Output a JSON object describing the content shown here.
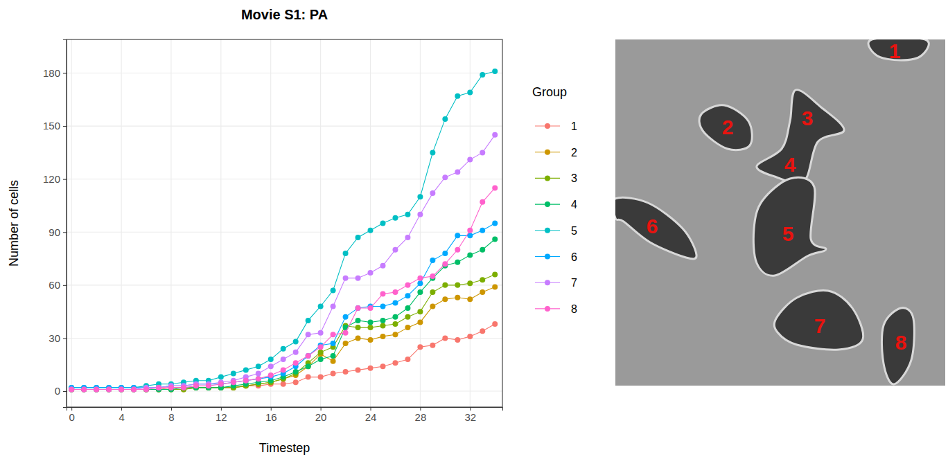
{
  "chart_data": {
    "type": "line",
    "title": "Movie S1: PA",
    "x_label": "Timestep",
    "y_label": "Number of cells",
    "legend_title": "Group",
    "legend": "right",
    "grid": true,
    "marker": "circle",
    "x": [
      0,
      1,
      2,
      3,
      4,
      5,
      6,
      7,
      8,
      9,
      10,
      11,
      12,
      13,
      14,
      15,
      16,
      17,
      18,
      19,
      20,
      21,
      22,
      23,
      24,
      25,
      26,
      27,
      28,
      29,
      30,
      31,
      32,
      33,
      34
    ],
    "xlim": [
      -0.4,
      34.6
    ],
    "xticks": [
      0,
      4,
      8,
      12,
      16,
      20,
      24,
      28,
      32
    ],
    "ylim": [
      -9,
      199
    ],
    "yticks": [
      0,
      30,
      60,
      90,
      120,
      150,
      180
    ],
    "series": [
      {
        "name": "1",
        "color": "#F8766D",
        "values": [
          1,
          1,
          1,
          1,
          1,
          1,
          1,
          1,
          2,
          2,
          2,
          2,
          2,
          2,
          3,
          3,
          4,
          4,
          5,
          8,
          8,
          10,
          11,
          12,
          13,
          14,
          16,
          18,
          25,
          26,
          30,
          29,
          31,
          34,
          38
        ]
      },
      {
        "name": "2",
        "color": "#CD9600",
        "values": [
          1,
          1,
          1,
          1,
          1,
          1,
          1,
          1,
          1,
          1,
          2,
          2,
          2,
          2,
          3,
          4,
          5,
          7,
          9,
          14,
          21,
          17,
          27,
          30,
          29,
          31,
          32,
          36,
          39,
          48,
          52,
          53,
          52,
          56,
          59
        ]
      },
      {
        "name": "3",
        "color": "#7CAE00",
        "values": [
          1,
          1,
          1,
          1,
          1,
          1,
          1,
          1,
          1,
          1,
          2,
          2,
          2,
          2,
          3,
          4,
          5,
          7,
          10,
          16,
          22,
          25,
          37,
          36,
          36,
          37,
          38,
          42,
          45,
          56,
          60,
          60,
          61,
          63,
          66
        ]
      },
      {
        "name": "4",
        "color": "#00BE67",
        "values": [
          1,
          1,
          1,
          1,
          1,
          1,
          1,
          1,
          1,
          2,
          2,
          2,
          2,
          3,
          4,
          5,
          6,
          8,
          11,
          14,
          18,
          20,
          36,
          40,
          39,
          40,
          42,
          47,
          56,
          64,
          71,
          73,
          77,
          80,
          86
        ]
      },
      {
        "name": "5",
        "color": "#00BFC4",
        "values": [
          2,
          2,
          2,
          2,
          2,
          2,
          3,
          4,
          4,
          5,
          6,
          6,
          8,
          10,
          12,
          14,
          18,
          24,
          28,
          40,
          48,
          57,
          78,
          87,
          91,
          95,
          98,
          100,
          110,
          135,
          154,
          167,
          169,
          179,
          181
        ]
      },
      {
        "name": "6",
        "color": "#00A9FF",
        "values": [
          2,
          2,
          2,
          2,
          2,
          2,
          2,
          2,
          3,
          3,
          4,
          4,
          4,
          5,
          6,
          7,
          8,
          10,
          14,
          20,
          26,
          27,
          42,
          47,
          48,
          48,
          50,
          54,
          61,
          74,
          78,
          88,
          88,
          91,
          95
        ]
      },
      {
        "name": "7",
        "color": "#C77CFF",
        "values": [
          1,
          1,
          1,
          1,
          1,
          1,
          2,
          2,
          3,
          3,
          4,
          4,
          5,
          6,
          8,
          10,
          14,
          18,
          22,
          32,
          33,
          48,
          64,
          64,
          67,
          71,
          80,
          87,
          100,
          112,
          121,
          124,
          131,
          135,
          145
        ]
      },
      {
        "name": "8",
        "color": "#FF61CC",
        "values": [
          1,
          1,
          1,
          1,
          1,
          1,
          1,
          2,
          2,
          2,
          3,
          3,
          4,
          5,
          6,
          7,
          9,
          12,
          16,
          20,
          25,
          32,
          33,
          47,
          47,
          55,
          56,
          60,
          64,
          65,
          72,
          80,
          91,
          107,
          115
        ]
      }
    ]
  },
  "image": {
    "labels": [
      "1",
      "2",
      "3",
      "4",
      "5",
      "6",
      "7",
      "8"
    ]
  }
}
